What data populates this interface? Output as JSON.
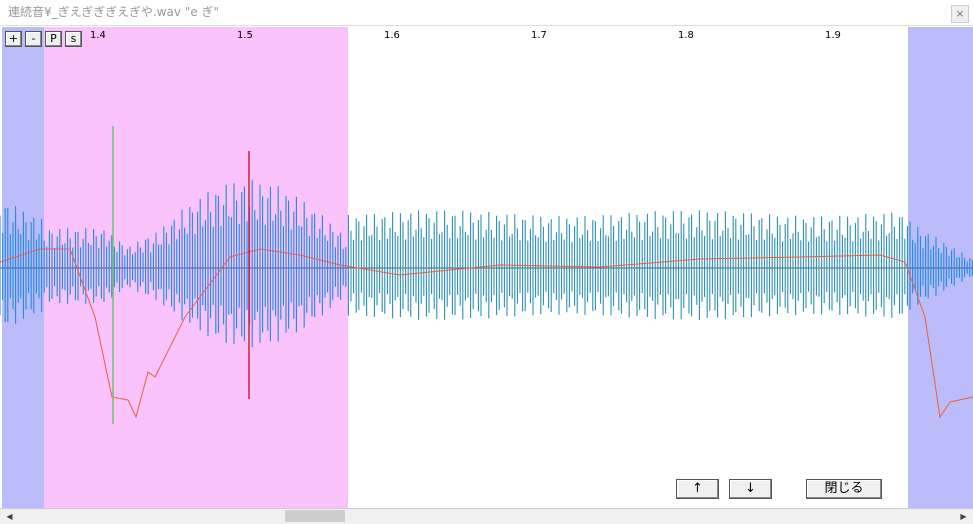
{
  "window": {
    "title": "連続音¥_ぎえぎぎぎえぎや.wav \"e ぎ\"",
    "close": "×"
  },
  "toolbar": {
    "buttons": [
      "+",
      "-",
      "P",
      "s"
    ]
  },
  "ruler": {
    "labels": [
      "1.4",
      "1.5",
      "1.6",
      "1.7",
      "1.8",
      "1.9"
    ]
  },
  "controls": {
    "up": "↑",
    "down": "↓",
    "close": "閉じる"
  },
  "scrollbar": {
    "left": "◀",
    "right": "▶"
  }
}
